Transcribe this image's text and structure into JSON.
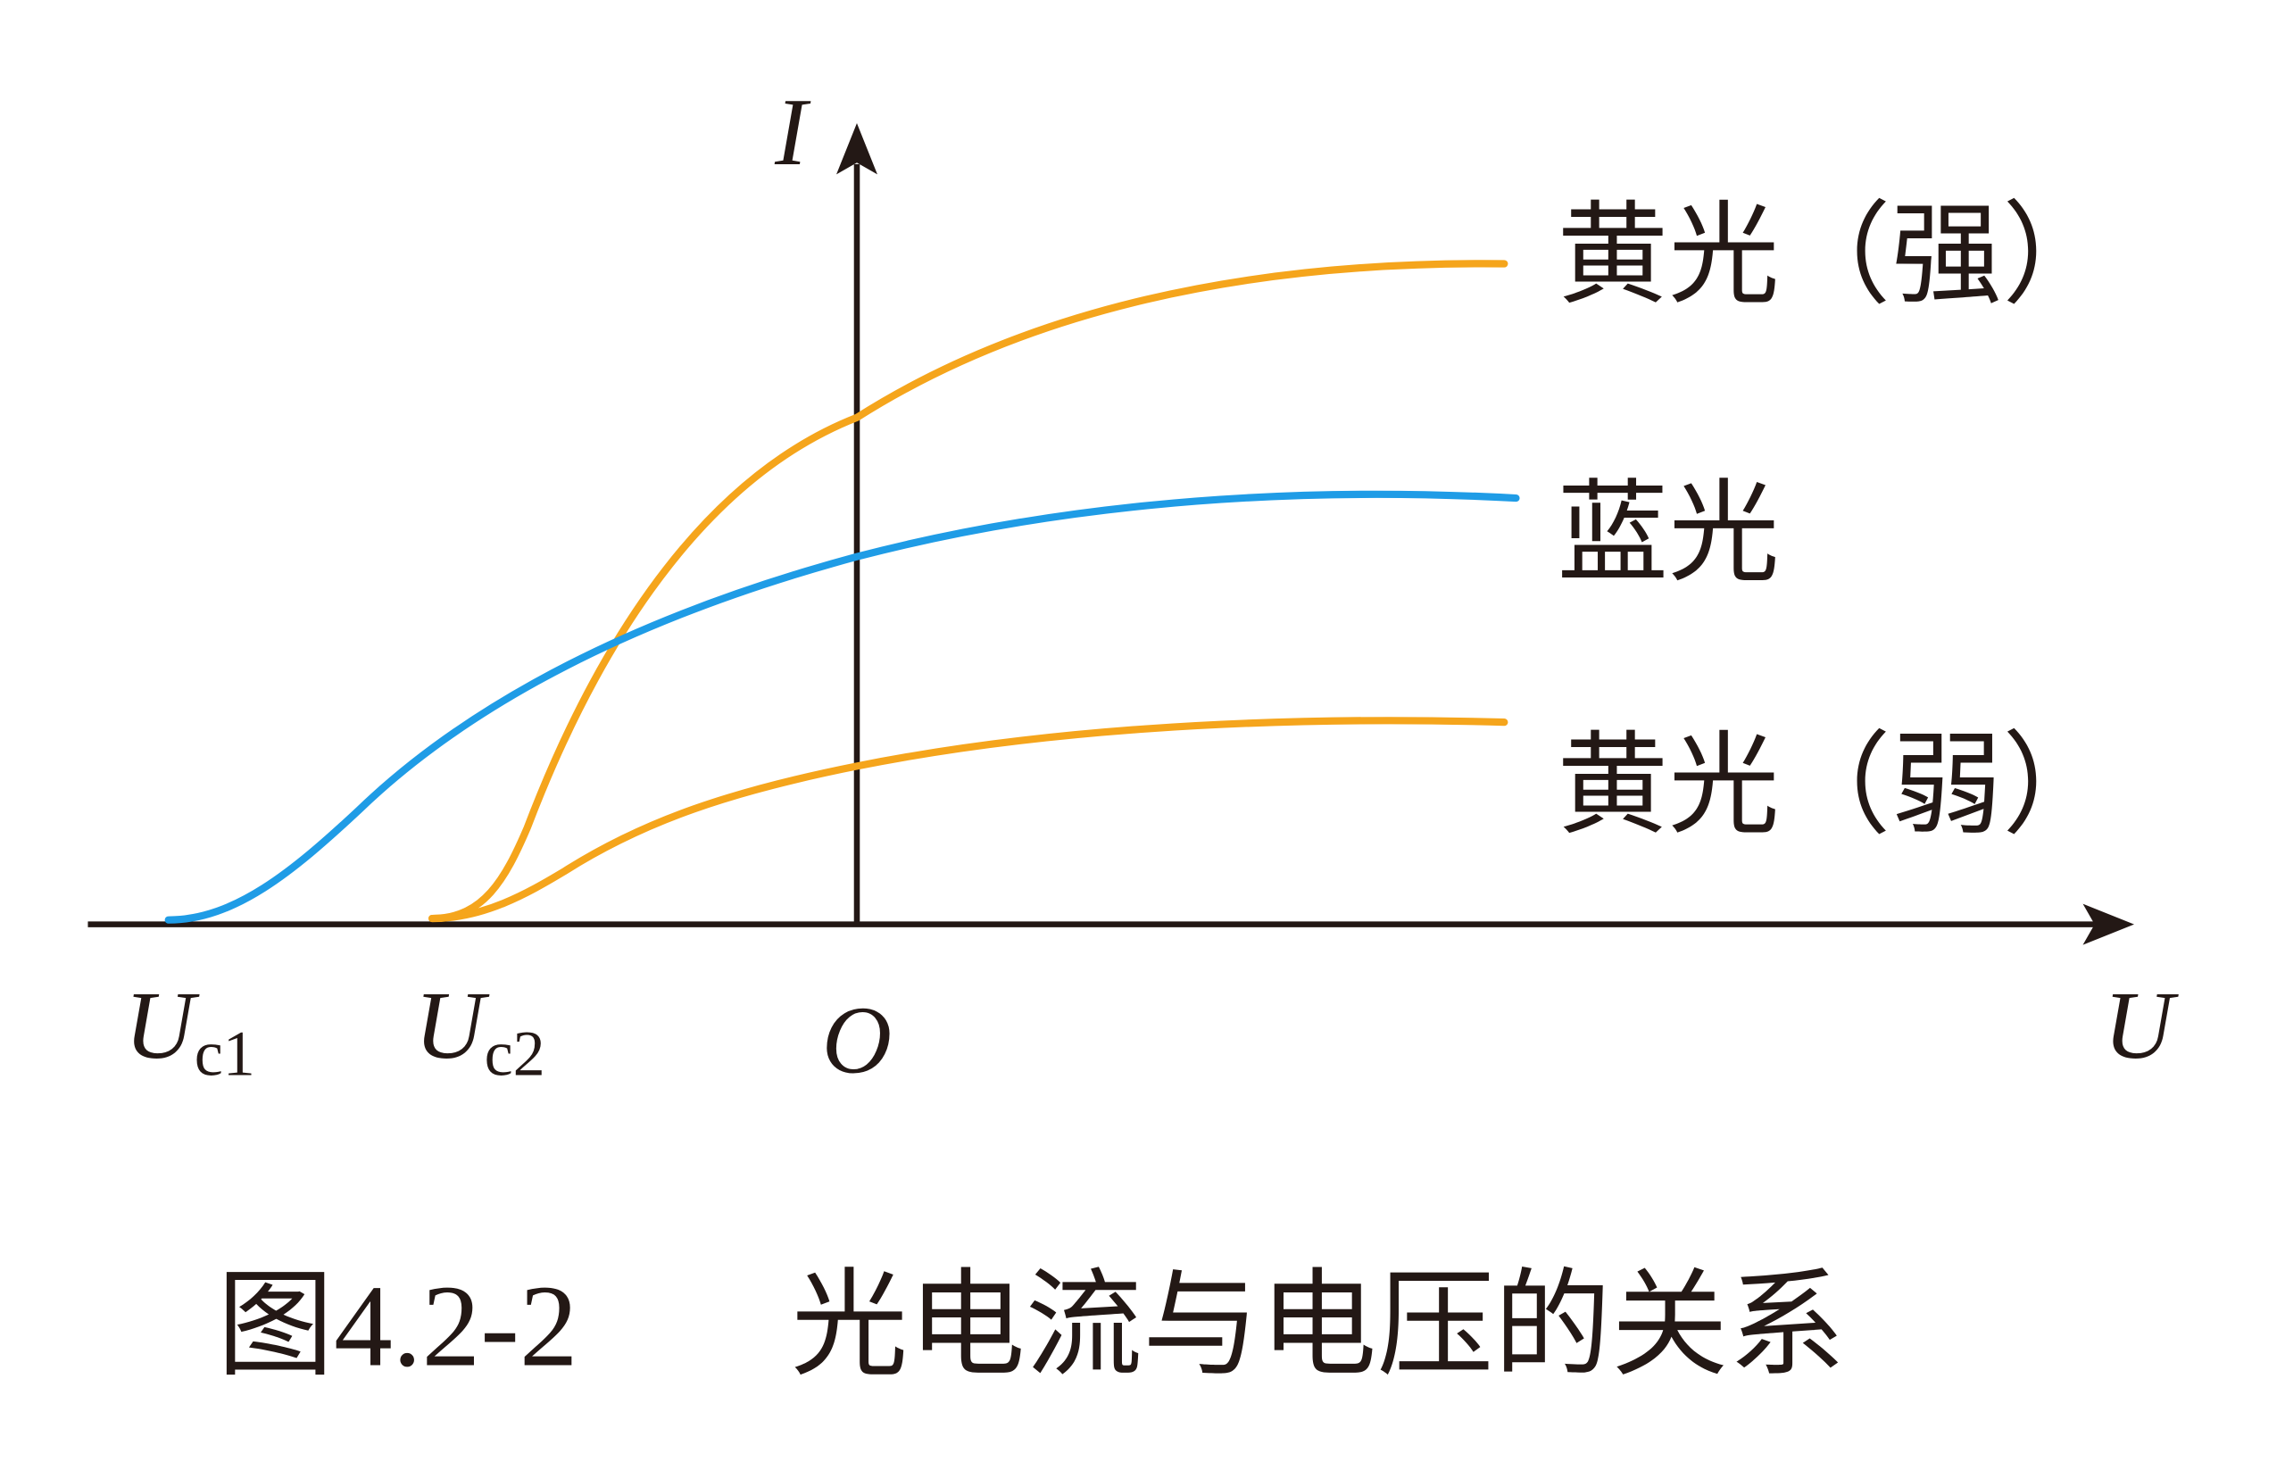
{
  "axes": {
    "y_label": "I",
    "x_label": "U",
    "origin": "O",
    "cutoff_1": {
      "symbol": "U",
      "subscript": "c1"
    },
    "cutoff_2": {
      "symbol": "U",
      "subscript": "c2"
    }
  },
  "curves": [
    {
      "label": "黄光（强）"
    },
    {
      "label": "蓝光"
    },
    {
      "label": "黄光（弱）"
    }
  ],
  "caption": {
    "number": "图4.2-2",
    "text": "光电流与电压的关系"
  }
}
